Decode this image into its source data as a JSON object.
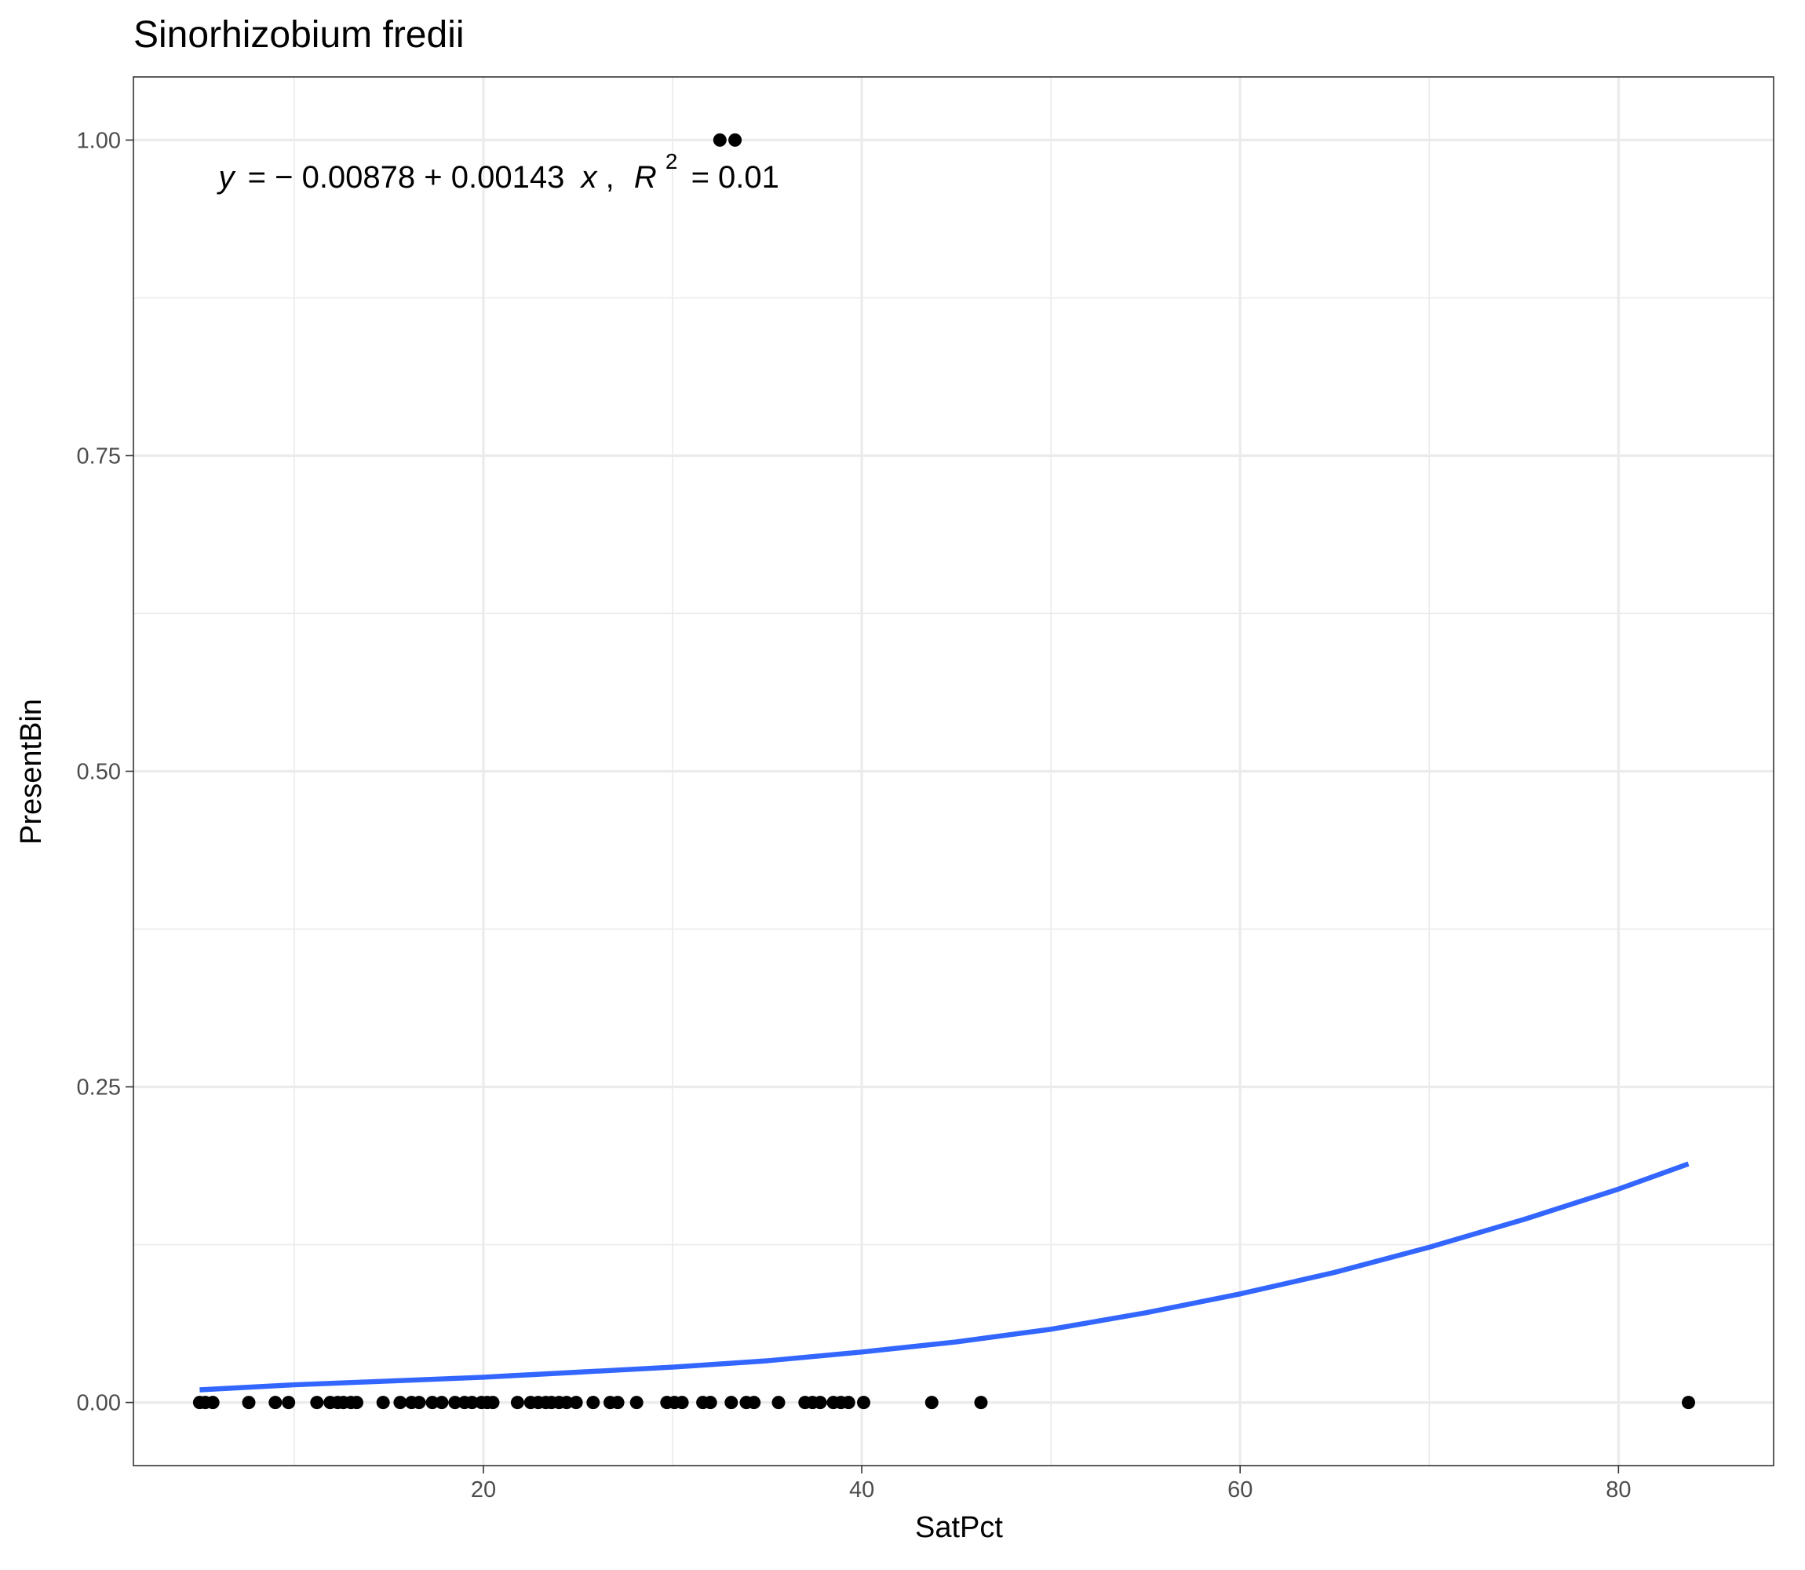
{
  "chart_data": {
    "type": "scatter",
    "title": "Sinorhizobium fredii",
    "xlabel": "SatPct",
    "ylabel": "PresentBin",
    "xlim": [
      1.5,
      88.2
    ],
    "ylim": [
      -0.05,
      1.05
    ],
    "x_ticks": [
      20,
      40,
      60,
      80
    ],
    "x_tick_labels": [
      "20",
      "40",
      "60",
      "80"
    ],
    "y_ticks": [
      0,
      0.25,
      0.5,
      0.75,
      1
    ],
    "y_tick_labels": [
      "0.00",
      "0.25",
      "0.50",
      "0.75",
      "1.00"
    ],
    "grid": true,
    "legend": "none",
    "point_color": "#000000",
    "fit_color": "#3366ff",
    "points": [
      {
        "x": 5.0,
        "y": 0
      },
      {
        "x": 5.3,
        "y": 0
      },
      {
        "x": 5.7,
        "y": 0
      },
      {
        "x": 7.6,
        "y": 0
      },
      {
        "x": 9.0,
        "y": 0
      },
      {
        "x": 9.7,
        "y": 0
      },
      {
        "x": 11.2,
        "y": 0
      },
      {
        "x": 11.9,
        "y": 0
      },
      {
        "x": 12.3,
        "y": 0
      },
      {
        "x": 12.6,
        "y": 0
      },
      {
        "x": 13.0,
        "y": 0
      },
      {
        "x": 13.3,
        "y": 0
      },
      {
        "x": 14.7,
        "y": 0
      },
      {
        "x": 15.6,
        "y": 0
      },
      {
        "x": 16.2,
        "y": 0
      },
      {
        "x": 16.6,
        "y": 0
      },
      {
        "x": 17.3,
        "y": 0
      },
      {
        "x": 17.8,
        "y": 0
      },
      {
        "x": 18.5,
        "y": 0
      },
      {
        "x": 19.0,
        "y": 0
      },
      {
        "x": 19.4,
        "y": 0
      },
      {
        "x": 19.9,
        "y": 0
      },
      {
        "x": 20.2,
        "y": 0
      },
      {
        "x": 20.5,
        "y": 0
      },
      {
        "x": 21.8,
        "y": 0
      },
      {
        "x": 22.5,
        "y": 0
      },
      {
        "x": 22.9,
        "y": 0
      },
      {
        "x": 23.3,
        "y": 0
      },
      {
        "x": 23.6,
        "y": 0
      },
      {
        "x": 24.0,
        "y": 0
      },
      {
        "x": 24.4,
        "y": 0
      },
      {
        "x": 24.9,
        "y": 0
      },
      {
        "x": 25.8,
        "y": 0
      },
      {
        "x": 26.7,
        "y": 0
      },
      {
        "x": 27.1,
        "y": 0
      },
      {
        "x": 28.1,
        "y": 0
      },
      {
        "x": 29.7,
        "y": 0
      },
      {
        "x": 30.1,
        "y": 0
      },
      {
        "x": 30.5,
        "y": 0
      },
      {
        "x": 31.6,
        "y": 0
      },
      {
        "x": 32.0,
        "y": 0
      },
      {
        "x": 33.1,
        "y": 0
      },
      {
        "x": 33.9,
        "y": 0
      },
      {
        "x": 34.3,
        "y": 0
      },
      {
        "x": 35.6,
        "y": 0
      },
      {
        "x": 37.0,
        "y": 0
      },
      {
        "x": 37.4,
        "y": 0
      },
      {
        "x": 37.8,
        "y": 0
      },
      {
        "x": 38.5,
        "y": 0
      },
      {
        "x": 38.9,
        "y": 0
      },
      {
        "x": 39.3,
        "y": 0
      },
      {
        "x": 40.1,
        "y": 0
      },
      {
        "x": 43.7,
        "y": 0
      },
      {
        "x": 46.3,
        "y": 0
      },
      {
        "x": 83.7,
        "y": 0
      },
      {
        "x": 32.5,
        "y": 1
      },
      {
        "x": 33.3,
        "y": 1
      }
    ],
    "fit_curve": {
      "name": "",
      "x": [
        5,
        10,
        15,
        20,
        25,
        30,
        35,
        40,
        45,
        50,
        55,
        60,
        65,
        70,
        75,
        80,
        83.7
      ],
      "y": [
        0.01,
        0.014,
        0.017,
        0.02,
        0.024,
        0.028,
        0.033,
        0.04,
        0.048,
        0.058,
        0.071,
        0.086,
        0.103,
        0.123,
        0.145,
        0.169,
        0.189
      ]
    },
    "annotation": {
      "y_symbol": "y",
      "equation_rhs": "= − 0.00878 + 0.00143",
      "x_symbol": "x",
      "separator": ",",
      "r_symbol": "R",
      "r_superscript": "2",
      "r_value": "= 0.01",
      "at": {
        "x": 6.0,
        "y": 0.971
      }
    }
  }
}
